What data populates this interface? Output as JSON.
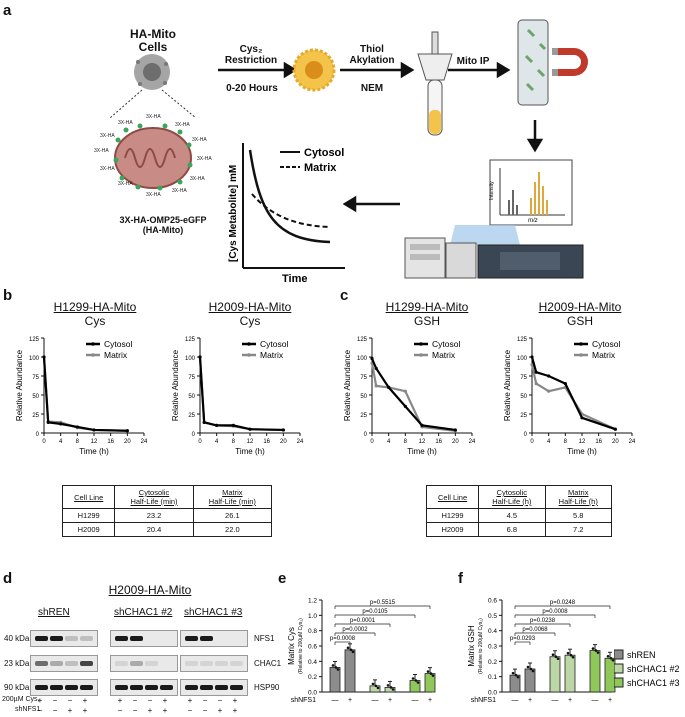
{
  "panels": {
    "a": "a",
    "b": "b",
    "c": "c",
    "d": "d",
    "e": "e",
    "f": "f"
  },
  "schematic": {
    "cells_label": "HA-Mito\nCells",
    "restriction": "Cys₂\nRestriction",
    "hours": "0-20 Hours",
    "thiol": "Thiol\nAkylation",
    "nem": "NEM",
    "mito_ip": "Mito IP",
    "ha_tag": "3X-HA",
    "construct": "3X-HA-OMP25-eGFP\n(HA-Mito)",
    "ms_y": "Intensity",
    "ms_x": "m/z",
    "plot_y": "[Cys Metabolite] mM",
    "plot_x": "Time",
    "legend_cytosol": "Cytosol",
    "legend_matrix": "Matrix",
    "colors": {
      "cell_gray": "#9a9a9a",
      "cell_yellow": "#f4c44a",
      "mito": "#c98b85",
      "magnet_red": "#c0392b",
      "tube": "#cfd8dc"
    }
  },
  "legend": {
    "cytosol": "Cytosol",
    "matrix": "Matrix",
    "cytosol_color": "#000000",
    "matrix_color": "#888888"
  },
  "panel_b": {
    "charts": [
      {
        "cell": "H1299-HA-Mito",
        "metabolite": "Cys"
      },
      {
        "cell": "H2009-HA-Mito",
        "metabolite": "Cys"
      }
    ],
    "table": {
      "headers": [
        "Cell Line",
        "Cytosolic\nHalf-Life (min)",
        "Matrix\nHalf-Life (min)"
      ],
      "rows": [
        [
          "H1299",
          "23.2",
          "26.1"
        ],
        [
          "H2009",
          "20.4",
          "22.0"
        ]
      ]
    }
  },
  "panel_c": {
    "charts": [
      {
        "cell": "H1299-HA-Mito",
        "metabolite": "GSH"
      },
      {
        "cell": "H2009-HA-Mito",
        "metabolite": "GSH"
      }
    ],
    "table": {
      "headers": [
        "Cell Line",
        "Cytosolic\nHalf-Life (h)",
        "Matrix\nHalf-Life (h)"
      ],
      "rows": [
        [
          "H1299",
          "4.5",
          "5.8"
        ],
        [
          "H2009",
          "6.8",
          "7.2"
        ]
      ]
    }
  },
  "chart_data": [
    {
      "type": "line",
      "ylabel": "Relative Abundance",
      "xlabel": "Time (h)",
      "ylim": [
        0,
        125
      ],
      "xlim": [
        0,
        24
      ],
      "yticks": [
        0,
        25,
        50,
        75,
        100,
        125
      ],
      "xticks": [
        0,
        4,
        8,
        12,
        16,
        20,
        24
      ],
      "series": [
        {
          "name": "Cytosol",
          "x": [
            0,
            1,
            4,
            8,
            12,
            20
          ],
          "values": [
            100,
            14,
            12,
            8,
            4,
            3
          ]
        },
        {
          "name": "Matrix",
          "x": [
            0,
            1,
            4,
            8,
            12,
            20
          ],
          "values": [
            100,
            15,
            14,
            7,
            4,
            3
          ]
        }
      ]
    },
    {
      "type": "line",
      "ylabel": "Relative Abundance",
      "xlabel": "Time (h)",
      "ylim": [
        0,
        125
      ],
      "xlim": [
        0,
        24
      ],
      "yticks": [
        0,
        25,
        50,
        75,
        100,
        125
      ],
      "xticks": [
        0,
        4,
        8,
        12,
        16,
        20,
        24
      ],
      "series": [
        {
          "name": "Cytosol",
          "x": [
            0,
            1,
            4,
            8,
            12,
            20
          ],
          "values": [
            100,
            14,
            10,
            10,
            5,
            4
          ]
        },
        {
          "name": "Matrix",
          "x": [
            0,
            1,
            4,
            8,
            12,
            20
          ],
          "values": [
            100,
            14,
            10,
            9,
            5,
            4
          ]
        }
      ]
    },
    {
      "type": "line",
      "ylabel": "Relative Abundance",
      "xlabel": "Time (h)",
      "ylim": [
        0,
        125
      ],
      "xlim": [
        0,
        24
      ],
      "yticks": [
        0,
        25,
        50,
        75,
        100,
        125
      ],
      "xticks": [
        0,
        4,
        8,
        12,
        16,
        20,
        24
      ],
      "series": [
        {
          "name": "Cytosol",
          "x": [
            0,
            1,
            4,
            8,
            12,
            20
          ],
          "values": [
            98,
            85,
            60,
            35,
            10,
            4
          ]
        },
        {
          "name": "Matrix",
          "x": [
            0,
            1,
            4,
            8,
            12,
            20
          ],
          "values": [
            92,
            62,
            60,
            55,
            8,
            3
          ]
        }
      ]
    },
    {
      "type": "line",
      "ylabel": "Relative Abundance",
      "xlabel": "Time (h)",
      "ylim": [
        0,
        125
      ],
      "xlim": [
        0,
        24
      ],
      "yticks": [
        0,
        25,
        50,
        75,
        100,
        125
      ],
      "xticks": [
        0,
        4,
        8,
        12,
        16,
        20,
        24
      ],
      "series": [
        {
          "name": "Cytosol",
          "x": [
            0,
            1,
            4,
            8,
            12,
            20
          ],
          "values": [
            100,
            80,
            75,
            65,
            20,
            5
          ]
        },
        {
          "name": "Matrix",
          "x": [
            0,
            1,
            4,
            8,
            12,
            20
          ],
          "values": [
            90,
            65,
            55,
            60,
            25,
            5
          ]
        }
      ]
    },
    {
      "type": "bar",
      "ylabel": "Matrix Cys",
      "ylabel_sub": "(Relative to 200µM Cys₂)",
      "ylim": [
        0,
        1.2
      ],
      "yticks": [
        0,
        0.2,
        0.4,
        0.6,
        0.8,
        1.0,
        1.2
      ],
      "categories": [
        "shREN −",
        "shREN +",
        "shCHAC1 #2 −",
        "shCHAC1 #2 +",
        "shCHAC1 #3 −",
        "shCHAC1 #3 +"
      ],
      "values": [
        0.32,
        0.55,
        0.08,
        0.06,
        0.15,
        0.24
      ],
      "pvalues": [
        "p=0.5515",
        "p=0.0105",
        "p=0.0001",
        "p=0.0002",
        "p=0.0008"
      ]
    },
    {
      "type": "bar",
      "ylabel": "Matrix GSH",
      "ylabel_sub": "(Relative to 200µM Cys₂)",
      "ylim": [
        0,
        0.6
      ],
      "yticks": [
        0,
        0.1,
        0.2,
        0.3,
        0.4,
        0.5,
        0.6
      ],
      "categories": [
        "shREN −",
        "shREN +",
        "shCHAC1 #2 −",
        "shCHAC1 #2 +",
        "shCHAC1 #3 −",
        "shCHAC1 #3 +"
      ],
      "values": [
        0.11,
        0.15,
        0.23,
        0.24,
        0.27,
        0.22
      ],
      "pvalues": [
        "p=0.0248",
        "p=0.0008",
        "p=0.0238",
        "p=0.0068",
        "p=0.0293"
      ]
    }
  ],
  "bar_legend": [
    {
      "name": "shREN",
      "color": "#8c8c8c"
    },
    {
      "name": "shCHAC1 #2",
      "color": "#bcd7a5"
    },
    {
      "name": "shCHAC1 #3",
      "color": "#8fc75b"
    }
  ],
  "shNFS1_label": "shNFS1",
  "bar_signs": [
    "—",
    "+",
    "—",
    "+",
    "—",
    "+"
  ],
  "panel_d": {
    "title": "H2009-HA-Mito",
    "groups": [
      "shREN",
      "shCHAC1 #2",
      "shCHAC1 #3"
    ],
    "kda": [
      "40 kDa",
      "23 kDa",
      "90 kDa"
    ],
    "proteins": [
      "NFS1",
      "CHAC1",
      "HSP90"
    ],
    "row1_label": "200µM Cys₂",
    "row2_label": "shNFS1",
    "row1": [
      "+",
      "−",
      "−",
      "+"
    ],
    "row2": [
      "−",
      "−",
      "+",
      "+"
    ]
  }
}
